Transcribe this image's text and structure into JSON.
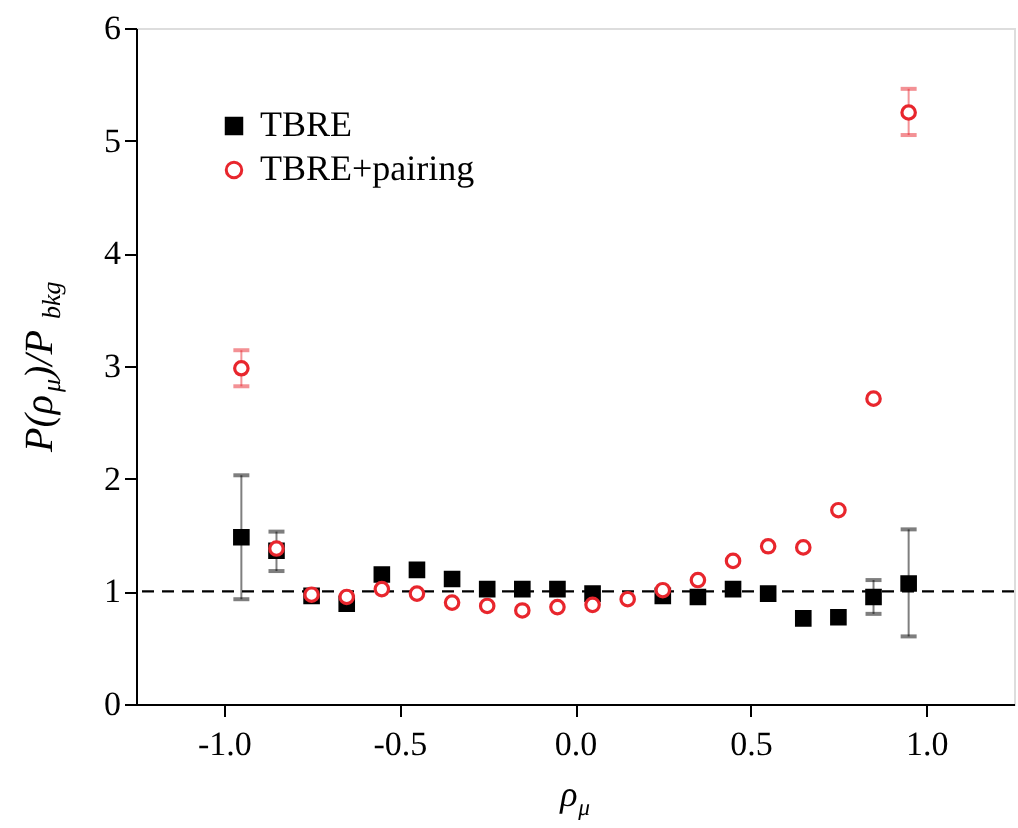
{
  "chart_data": {
    "type": "scatter",
    "xlabel": "ρ$_{μ}$",
    "ylabel": "P(ρ$_{μ}$)/P$_{bkg}$",
    "x": [
      -0.95,
      -0.85,
      -0.75,
      -0.65,
      -0.55,
      -0.45,
      -0.35,
      -0.25,
      -0.15,
      -0.05,
      0.05,
      0.15,
      0.25,
      0.35,
      0.45,
      0.55,
      0.65,
      0.75,
      0.85,
      0.95
    ],
    "series": [
      {
        "name": "TBRE",
        "color": "#000000",
        "marker": "square",
        "values": [
          1.48,
          1.36,
          0.96,
          0.89,
          1.15,
          1.19,
          1.11,
          1.02,
          1.02,
          1.02,
          0.98,
          null,
          0.96,
          0.95,
          1.02,
          0.98,
          0.76,
          0.77,
          0.95,
          1.07
        ],
        "errors": [
          [
            0.93,
            2.03
          ],
          [
            1.18,
            1.53
          ],
          null,
          null,
          null,
          null,
          null,
          null,
          null,
          null,
          null,
          null,
          null,
          null,
          null,
          null,
          null,
          null,
          [
            0.8,
            1.1
          ],
          [
            0.6,
            1.55
          ]
        ]
      },
      {
        "name": "TBRE+pairing",
        "color": "#e8262d",
        "marker": "circle",
        "values": [
          2.98,
          1.38,
          0.97,
          0.95,
          1.02,
          0.98,
          0.9,
          0.87,
          0.83,
          0.86,
          0.88,
          0.93,
          1.01,
          1.1,
          1.27,
          1.4,
          1.39,
          1.72,
          2.71,
          5.25
        ],
        "errors": [
          [
            2.82,
            3.14
          ],
          null,
          null,
          null,
          null,
          null,
          null,
          null,
          null,
          null,
          null,
          null,
          null,
          null,
          null,
          null,
          null,
          null,
          null,
          [
            5.05,
            5.46
          ]
        ]
      }
    ],
    "xlim": [
      -1.25,
      1.25
    ],
    "xticks": [
      {
        "value": -1.0,
        "label": "-1.0"
      },
      {
        "value": -0.5,
        "label": "-0.5"
      },
      {
        "value": 0,
        "label": "0.0"
      },
      {
        "value": 0.5,
        "label": "0.5"
      },
      {
        "value": 1.0,
        "label": "1.0"
      }
    ],
    "ylim": [
      0,
      6
    ],
    "yticks": [
      0,
      1,
      2,
      3,
      4,
      5,
      6
    ],
    "ref_lines": [
      {
        "axis": "y",
        "value": 1,
        "color": "#000000",
        "line_style": "dashed"
      }
    ],
    "grid": false,
    "legend": "top left"
  }
}
